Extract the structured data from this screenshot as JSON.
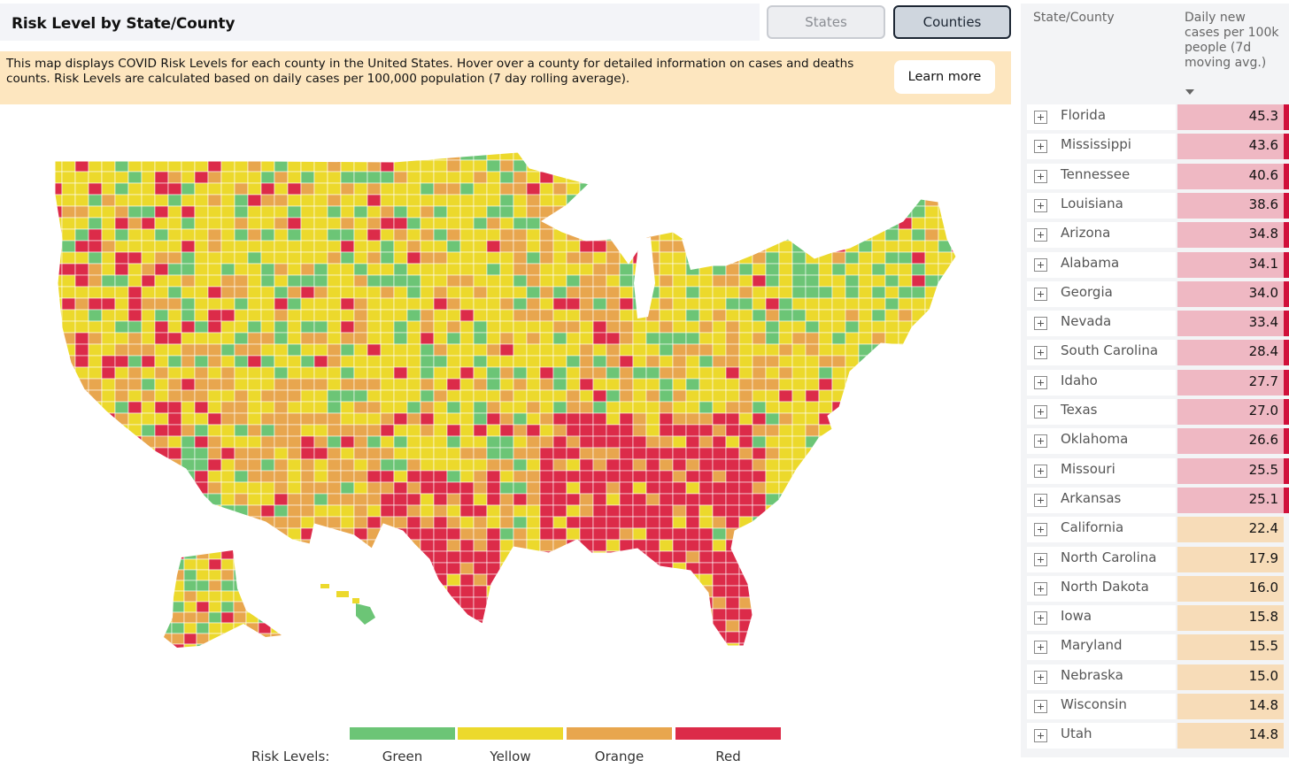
{
  "header": {
    "title": "Risk Level by State/County"
  },
  "toggle": {
    "states_label": "States",
    "counties_label": "Counties",
    "active": "Counties"
  },
  "info": {
    "text": "This map displays COVID Risk Levels for each county in the United States. Hover over a county for detailed information on cases and deaths counts. Risk Levels are calculated based on daily cases per 100,000 population (7 day rolling average).",
    "learn_more_label": "Learn more"
  },
  "legend": {
    "label": "Risk Levels:",
    "levels": [
      {
        "name": "Green",
        "color": "#6cc576"
      },
      {
        "name": "Yellow",
        "color": "#ecd92c"
      },
      {
        "name": "Orange",
        "color": "#e8a64e"
      },
      {
        "name": "Red",
        "color": "#dc2b49"
      }
    ]
  },
  "table": {
    "col_state": "State/County",
    "col_cases": "Daily new cases per 100k people (7d moving avg.)",
    "colors": {
      "red_row": "#efb8c3",
      "orange_row": "#f7dcb8",
      "red_flag": "#d0103a"
    },
    "rows": [
      {
        "name": "Florida",
        "value": "45.3",
        "level": "red"
      },
      {
        "name": "Mississippi",
        "value": "43.6",
        "level": "red"
      },
      {
        "name": "Tennessee",
        "value": "40.6",
        "level": "red"
      },
      {
        "name": "Louisiana",
        "value": "38.6",
        "level": "red"
      },
      {
        "name": "Arizona",
        "value": "34.8",
        "level": "red"
      },
      {
        "name": "Alabama",
        "value": "34.1",
        "level": "red"
      },
      {
        "name": "Georgia",
        "value": "34.0",
        "level": "red"
      },
      {
        "name": "Nevada",
        "value": "33.4",
        "level": "red"
      },
      {
        "name": "South Carolina",
        "value": "28.4",
        "level": "red"
      },
      {
        "name": "Idaho",
        "value": "27.7",
        "level": "red"
      },
      {
        "name": "Texas",
        "value": "27.0",
        "level": "red"
      },
      {
        "name": "Oklahoma",
        "value": "26.6",
        "level": "red"
      },
      {
        "name": "Missouri",
        "value": "25.5",
        "level": "red"
      },
      {
        "name": "Arkansas",
        "value": "25.1",
        "level": "red"
      },
      {
        "name": "California",
        "value": "22.4",
        "level": "orange"
      },
      {
        "name": "North Carolina",
        "value": "17.9",
        "level": "orange"
      },
      {
        "name": "North Dakota",
        "value": "16.0",
        "level": "orange"
      },
      {
        "name": "Iowa",
        "value": "15.8",
        "level": "orange"
      },
      {
        "name": "Maryland",
        "value": "15.5",
        "level": "orange"
      },
      {
        "name": "Nebraska",
        "value": "15.0",
        "level": "orange"
      },
      {
        "name": "Wisconsin",
        "value": "14.8",
        "level": "orange"
      },
      {
        "name": "Utah",
        "value": "14.8",
        "level": "orange"
      }
    ]
  }
}
